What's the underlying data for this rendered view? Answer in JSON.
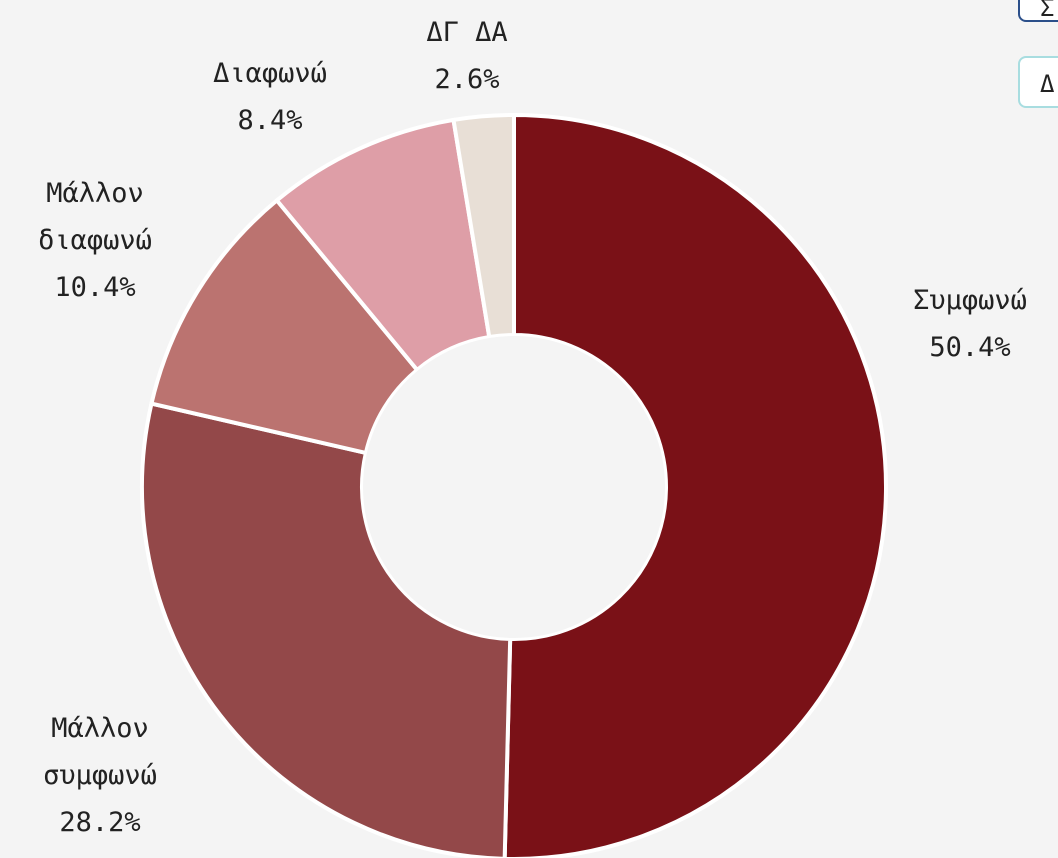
{
  "chart_data": {
    "type": "donut",
    "categories": [
      "Συμφωνώ",
      "Μάλλον συμφωνώ",
      "Μάλλον διαφωνώ",
      "Διαφωνώ",
      "ΔΓ ΔΑ"
    ],
    "values": [
      50.4,
      28.2,
      10.4,
      8.4,
      2.6
    ],
    "value_labels": [
      "50.4%",
      "28.2%",
      "10.4%",
      "8.4%",
      "2.6%"
    ],
    "colors": [
      "#7a1117",
      "#934849",
      "#bb7370",
      "#de9ea7",
      "#e8dfd6"
    ]
  },
  "buttons": [
    "Σ",
    "Δ"
  ]
}
